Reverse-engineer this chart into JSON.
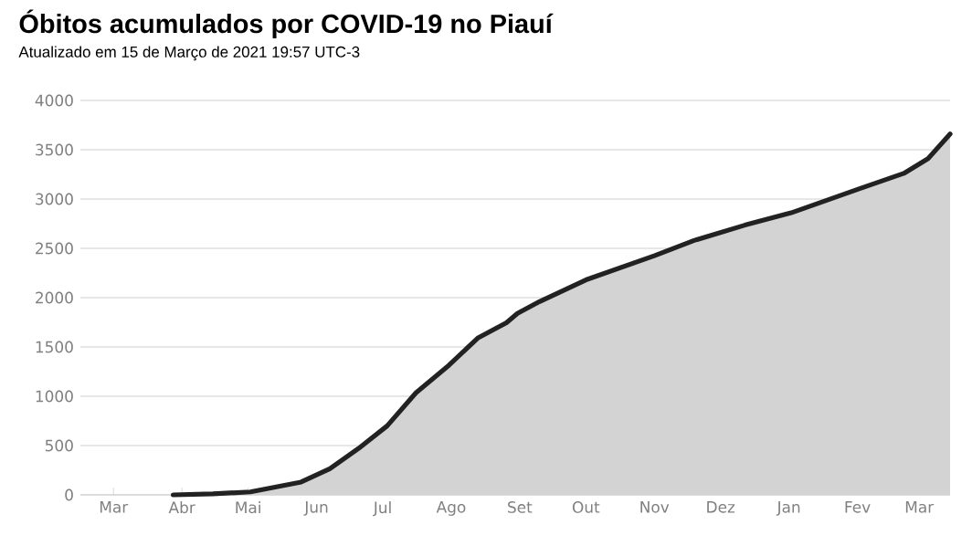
{
  "chart_data": {
    "type": "area",
    "title": "Óbitos acumulados por COVID-19 no Piauí",
    "subtitle": "Atualizado em 15 de Março de 2021 19:57 UTC-3",
    "x": [
      "2020-03-28",
      "2020-04-15",
      "2020-05-02",
      "2020-05-25",
      "2020-06-07",
      "2020-06-20",
      "2020-07-03",
      "2020-07-16",
      "2020-07-31",
      "2020-08-13",
      "2020-08-26",
      "2020-08-31",
      "2020-09-10",
      "2020-10-01",
      "2020-11-01",
      "2020-11-19",
      "2020-12-12",
      "2021-01-02",
      "2021-02-02",
      "2021-02-22",
      "2021-03-05",
      "2021-03-15"
    ],
    "series": [
      {
        "color": "#222222",
        "values": [
          0,
          10,
          30,
          130,
          265,
          470,
          700,
          1035,
          1315,
          1590,
          1745,
          1840,
          1960,
          2180,
          2425,
          2580,
          2735,
          2860,
          3105,
          3260,
          3410,
          3660
        ]
      }
    ],
    "xlim": [
      "2020-02-15",
      "2021-03-15"
    ],
    "xticks": [
      {
        "value": "2020-03-01",
        "label": "Mar"
      },
      {
        "value": "2020-04-01",
        "label": "Abr"
      },
      {
        "value": "2020-05-01",
        "label": "Mai"
      },
      {
        "value": "2020-06-01",
        "label": "Jun"
      },
      {
        "value": "2020-07-01",
        "label": "Jul"
      },
      {
        "value": "2020-08-01",
        "label": "Ago"
      },
      {
        "value": "2020-09-01",
        "label": "Set"
      },
      {
        "value": "2020-10-01",
        "label": "Out"
      },
      {
        "value": "2020-11-01",
        "label": "Nov"
      },
      {
        "value": "2020-12-01",
        "label": "Dez"
      },
      {
        "value": "2021-01-01",
        "label": "Jan"
      },
      {
        "value": "2021-02-01",
        "label": "Fev"
      },
      {
        "value": "2021-03-01",
        "label": "Mar"
      }
    ],
    "ylim": [
      0,
      4000
    ],
    "yticks": [
      0,
      500,
      1000,
      1500,
      2000,
      2500,
      3000,
      3500,
      4000
    ],
    "grid": "y",
    "marker": "none",
    "line_style": "solid"
  }
}
